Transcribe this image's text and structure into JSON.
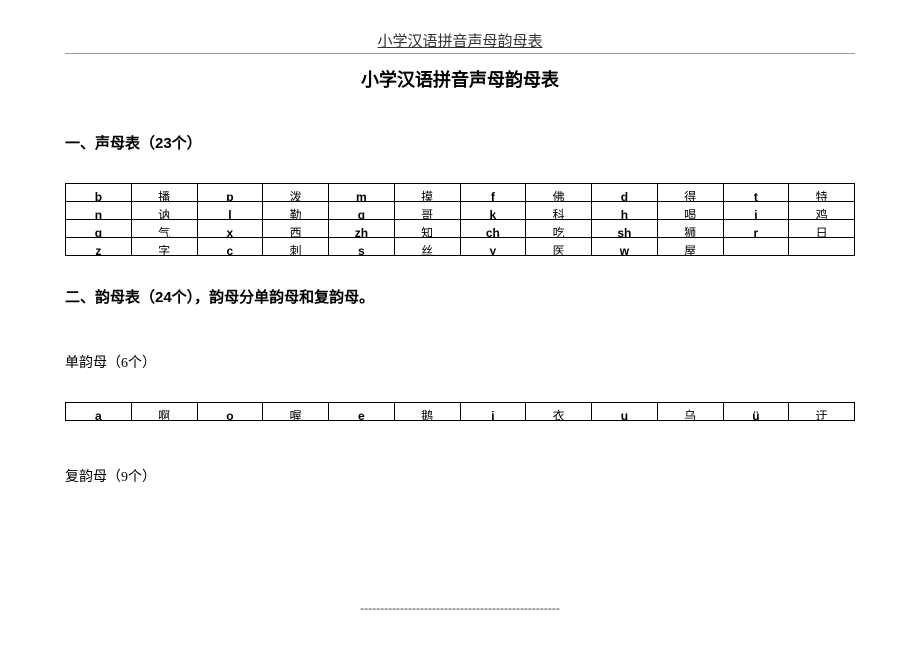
{
  "header": {
    "top_title": "小学汉语拼音声母韵母表",
    "main_title": "小学汉语拼音声母韵母表"
  },
  "section1": {
    "heading": "一、声母表（23个）",
    "rows": [
      [
        "b",
        "播",
        "p",
        "泼",
        "m",
        "摸",
        "f",
        "佛",
        "d",
        "得",
        "t",
        "特"
      ],
      [
        "n",
        "讷",
        "l",
        "勒",
        "g",
        "哥",
        "k",
        "科",
        "h",
        "喝",
        "j",
        "鸡"
      ],
      [
        "q",
        "气",
        "x",
        "西",
        "zh",
        "知",
        "ch",
        "吃",
        "sh",
        "狮",
        "r",
        "日"
      ],
      [
        "z",
        "字",
        "c",
        "刺",
        "s",
        "丝",
        "y",
        "医",
        "w",
        "屋",
        "",
        ""
      ]
    ]
  },
  "section2": {
    "heading": "二、韵母表（24个），韵母分单韵母和复韵母。",
    "sub1": "单韵母（6个）",
    "row_single": [
      "a",
      "啊",
      "o",
      "喔",
      "e",
      "鹅",
      "i",
      "衣",
      "u",
      "乌",
      "ü",
      "迂"
    ],
    "sub2": "复韵母（9个）"
  },
  "footer_dashes": "--------------------------------------------------"
}
